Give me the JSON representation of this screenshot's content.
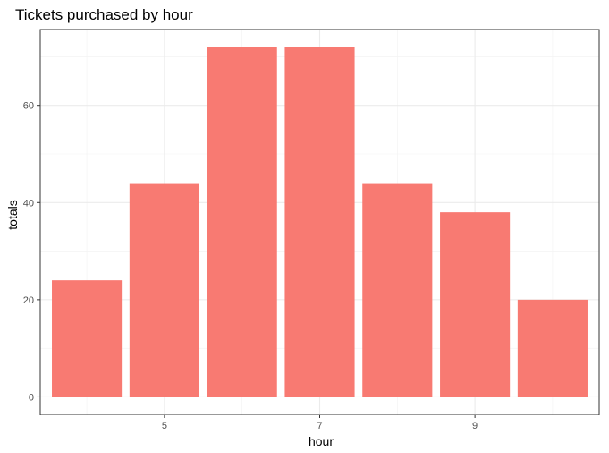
{
  "chart_data": {
    "type": "bar",
    "title": "Tickets purchased by hour",
    "xlabel": "hour",
    "ylabel": "totals",
    "x": [
      4,
      5,
      6,
      7,
      8,
      9,
      10
    ],
    "values": [
      24,
      44,
      72,
      72,
      44,
      38,
      20
    ],
    "xlim": [
      3.4,
      10.6
    ],
    "ylim": [
      -3.6,
      75.6
    ],
    "xticks": [
      5,
      7,
      9
    ],
    "xtick_labels": [
      "5",
      "7",
      "9"
    ],
    "yticks": [
      0,
      20,
      40,
      60
    ],
    "ytick_labels": [
      "0",
      "20",
      "40",
      "60"
    ],
    "grid": true,
    "legend": "none",
    "bar_color": "#F8766D"
  }
}
